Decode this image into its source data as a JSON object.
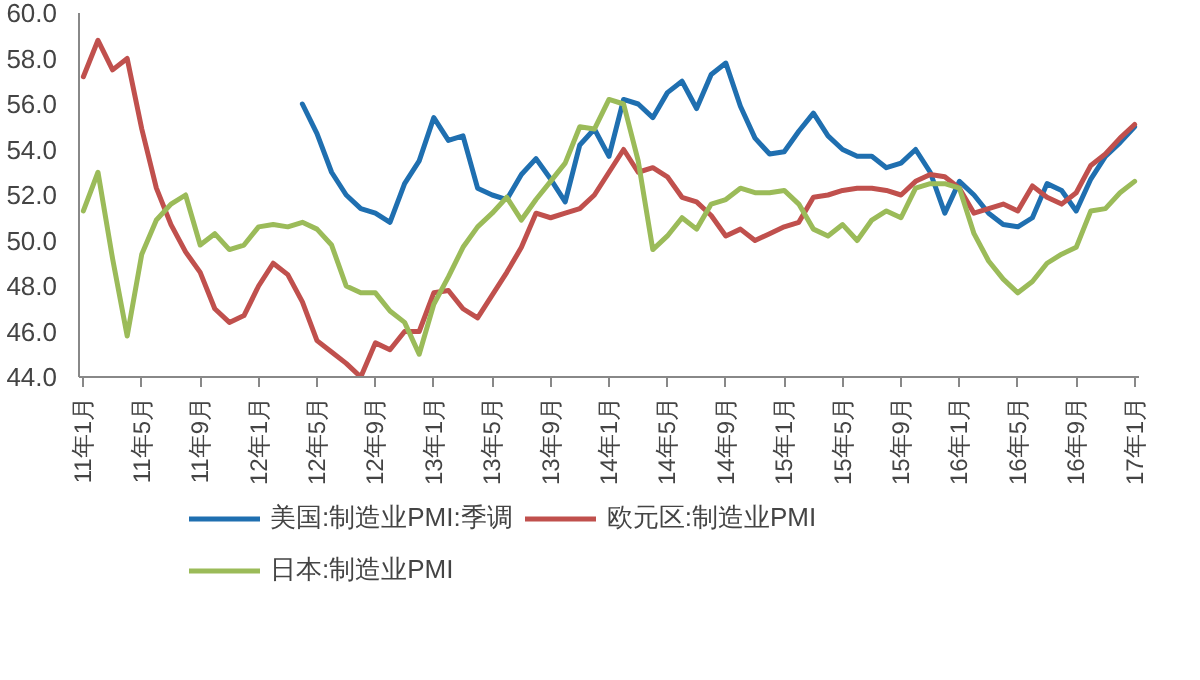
{
  "chart_data": {
    "type": "line",
    "categories": [
      "11年1月",
      null,
      null,
      null,
      "11年5月",
      null,
      null,
      null,
      "11年9月",
      null,
      null,
      null,
      "12年1月",
      null,
      null,
      null,
      "12年5月",
      null,
      null,
      null,
      "12年9月",
      null,
      null,
      null,
      "13年1月",
      null,
      null,
      null,
      "13年5月",
      null,
      null,
      null,
      "13年9月",
      null,
      null,
      null,
      "14年1月",
      null,
      null,
      null,
      "14年5月",
      null,
      null,
      null,
      "14年9月",
      null,
      null,
      null,
      "15年1月",
      null,
      null,
      null,
      "15年5月",
      null,
      null,
      null,
      "15年9月",
      null,
      null,
      null,
      "16年1月",
      null,
      null,
      null,
      "16年5月",
      null,
      null,
      null,
      "16年9月",
      null,
      null,
      null,
      "17年1月"
    ],
    "series": [
      {
        "name": "美国:制造业PMI:季调",
        "color": "#1f6fb0",
        "values": [
          null,
          null,
          null,
          null,
          null,
          null,
          null,
          null,
          null,
          null,
          null,
          null,
          null,
          null,
          null,
          56.0,
          54.7,
          53.0,
          52.0,
          51.4,
          51.2,
          50.8,
          52.5,
          53.5,
          55.4,
          54.4,
          54.6,
          52.3,
          52.0,
          51.8,
          52.9,
          53.6,
          52.7,
          51.7,
          54.2,
          54.9,
          53.7,
          56.2,
          56.0,
          55.4,
          56.5,
          57.0,
          55.8,
          57.3,
          57.8,
          55.9,
          54.5,
          53.8,
          53.9,
          54.8,
          55.6,
          54.6,
          54.0,
          53.7,
          53.7,
          53.2,
          53.4,
          54.0,
          53.0,
          51.2,
          52.6,
          52.0,
          51.2,
          50.7,
          50.6,
          51.0,
          52.5,
          52.2,
          51.3,
          52.7,
          53.7,
          54.3,
          55.0
        ]
      },
      {
        "name": "欧元区:制造业PMI",
        "color": "#c0504d",
        "values": [
          57.2,
          58.8,
          57.5,
          58.0,
          54.9,
          52.3,
          50.7,
          49.5,
          48.6,
          47.0,
          46.4,
          46.7,
          48.0,
          49.0,
          48.5,
          47.3,
          45.6,
          45.1,
          44.6,
          44.0,
          45.5,
          45.2,
          46.0,
          46.0,
          47.7,
          47.8,
          47.0,
          46.6,
          47.6,
          48.6,
          49.7,
          51.2,
          51.0,
          51.2,
          51.4,
          52.0,
          53.0,
          54.0,
          53.0,
          53.2,
          52.8,
          51.9,
          51.7,
          51.1,
          50.2,
          50.5,
          50.0,
          50.3,
          50.6,
          50.8,
          51.9,
          52.0,
          52.2,
          52.3,
          52.3,
          52.2,
          52.0,
          52.6,
          52.9,
          52.8,
          52.3,
          51.2,
          51.4,
          51.6,
          51.3,
          52.4,
          51.9,
          51.6,
          52.1,
          53.3,
          53.8,
          54.5,
          55.1
        ]
      },
      {
        "name": "日本:制造业PMI",
        "color": "#9bbb59",
        "values": [
          51.3,
          53.0,
          49.2,
          45.8,
          49.4,
          50.9,
          51.6,
          52.0,
          49.8,
          50.3,
          49.6,
          49.8,
          50.6,
          50.7,
          50.6,
          50.8,
          50.5,
          49.8,
          48.0,
          47.7,
          47.7,
          46.9,
          46.4,
          45.0,
          47.2,
          48.4,
          49.7,
          50.6,
          51.2,
          51.9,
          50.9,
          51.8,
          52.6,
          53.4,
          55.0,
          54.9,
          56.2,
          56.0,
          53.5,
          49.6,
          50.2,
          51.0,
          50.5,
          51.6,
          51.8,
          52.3,
          52.1,
          52.1,
          52.2,
          51.6,
          50.5,
          50.2,
          50.7,
          50.0,
          50.9,
          51.3,
          51.0,
          52.3,
          52.5,
          52.5,
          52.3,
          50.3,
          49.1,
          48.3,
          47.7,
          48.2,
          49.0,
          49.4,
          49.7,
          51.3,
          51.4,
          52.1,
          52.6
        ]
      }
    ],
    "ylim": [
      44,
      60
    ],
    "yticks": [
      {
        "value": 44,
        "label": "44.0"
      },
      {
        "value": 46,
        "label": "46.0"
      },
      {
        "value": 48,
        "label": "48.0"
      },
      {
        "value": 50,
        "label": "50.0"
      },
      {
        "value": 52,
        "label": "52.0"
      },
      {
        "value": 54,
        "label": "54.0"
      },
      {
        "value": 56,
        "label": "56.0"
      },
      {
        "value": 58,
        "label": "58.0"
      },
      {
        "value": 60,
        "label": "60.0"
      }
    ],
    "grid": false,
    "legend": "bottom",
    "line_style": "solid"
  }
}
